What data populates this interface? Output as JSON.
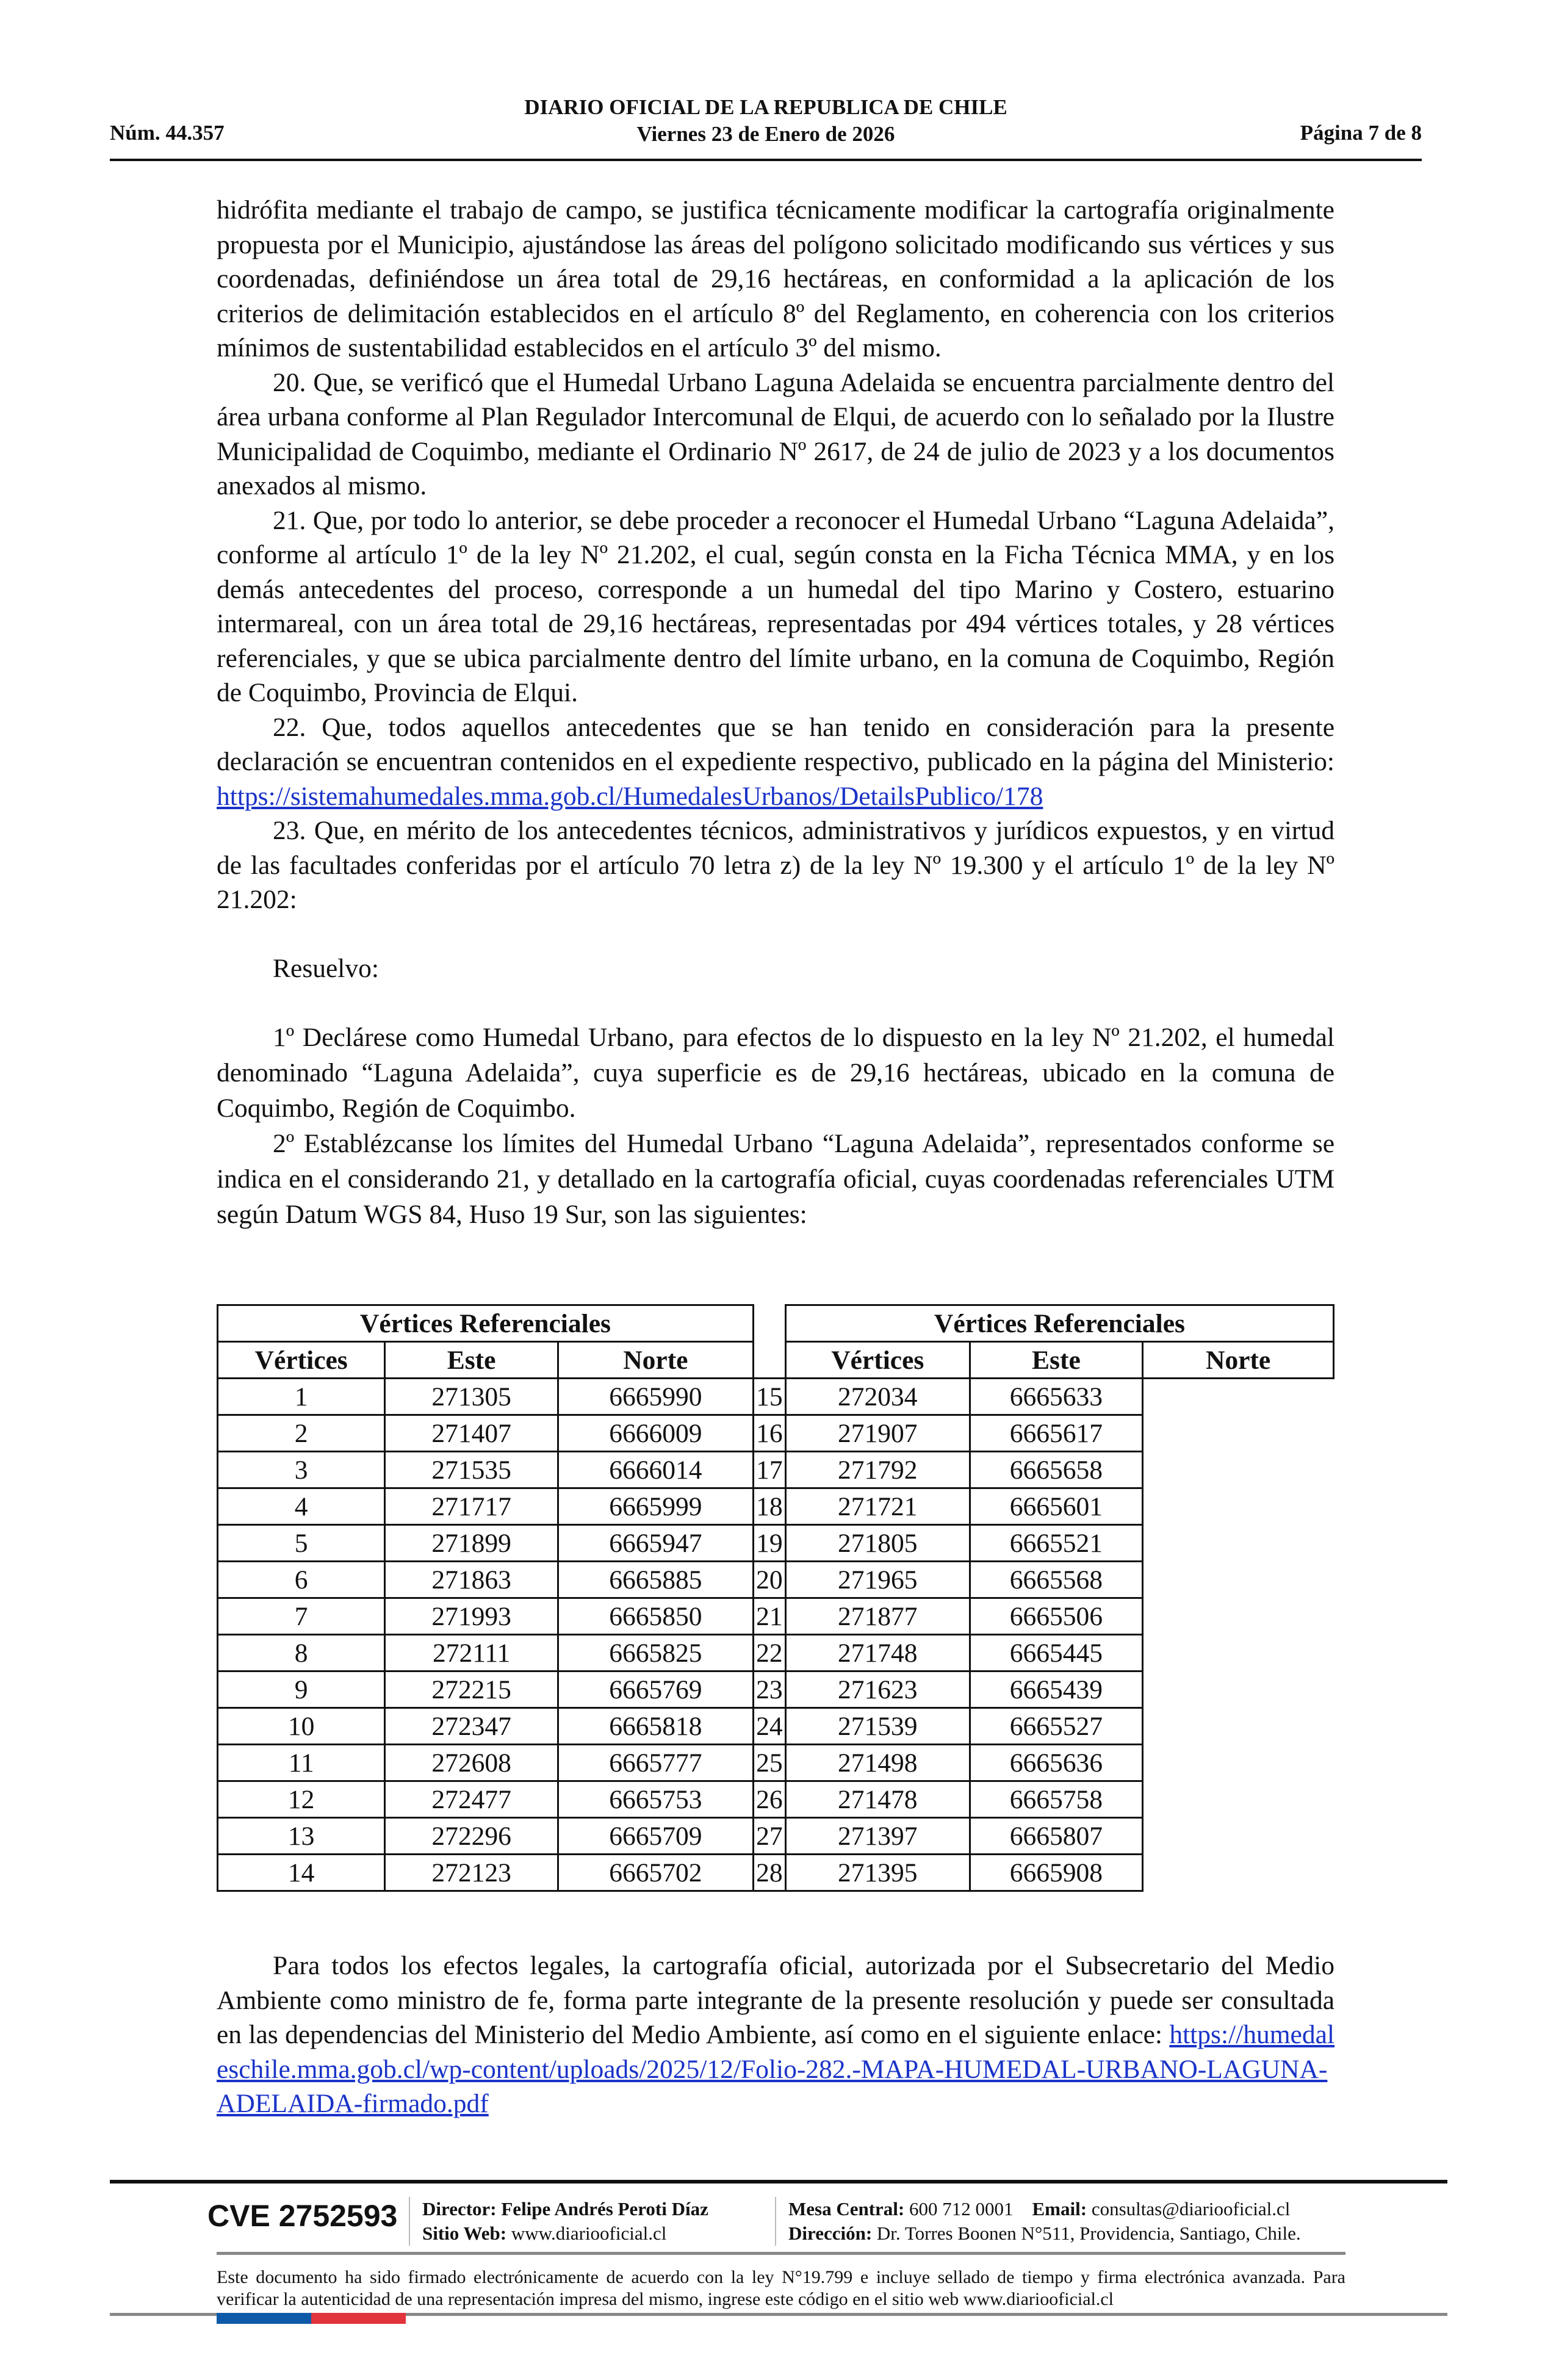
{
  "header": {
    "title": "DIARIO OFICIAL DE LA REPUBLICA DE CHILE",
    "date": "Viernes 23 de Enero de 2026",
    "number": "Núm. 44.357",
    "page": "Página 7 de 8"
  },
  "body": {
    "p1": "hidrófita mediante el trabajo de campo, se justifica técnicamente modificar la cartografía originalmente propuesta por el Municipio, ajustándose las áreas del polígono solicitado modificando sus vértices y sus coordenadas, definiéndose un área total de 29,16 hectáreas, en conformidad a la aplicación de los criterios de delimitación establecidos en el artículo 8º del Reglamento, en coherencia con los criterios mínimos de sustentabilidad establecidos en el artículo 3º del mismo.",
    "p20": "20. Que, se verificó que el Humedal Urbano Laguna Adelaida se encuentra parcialmente dentro del área urbana conforme al Plan Regulador Intercomunal de Elqui, de acuerdo con lo señalado por la Ilustre Municipalidad de Coquimbo, mediante el Ordinario Nº 2617, de 24 de julio de 2023 y a los documentos anexados al mismo.",
    "p21": "21. Que, por todo lo anterior, se debe proceder a reconocer el Humedal Urbano “Laguna Adelaida”, conforme al artículo 1º de la ley Nº 21.202, el cual, según consta en la Ficha Técnica MMA, y en los demás antecedentes del proceso, corresponde a un humedal del tipo Marino y Costero, estuarino intermareal, con un área total de 29,16 hectáreas, representadas por 494 vértices totales, y 28 vértices referenciales, y que se ubica parcialmente dentro del límite urbano, en la comuna de Coquimbo, Región de Coquimbo, Provincia de Elqui.",
    "p22": "22. Que, todos aquellos antecedentes que se han tenido en consideración para la presente declaración se encuentran contenidos en el expediente respectivo, publicado en la página del Ministerio: ",
    "p22_link": "https://sistemahumedales.mma.gob.cl/HumedalesUrbanos/DetailsPublico/178",
    "p23": "23. Que, en mérito de los antecedentes técnicos, administrativos y jurídicos expuestos, y en virtud de las facultades conferidas por el artículo 70 letra z) de la ley Nº 19.300 y el artículo 1º de la ley Nº 21.202:",
    "resuelvo": "Resuelvo:",
    "r1": "1º Declárese como Humedal Urbano, para efectos de lo dispuesto en la ley Nº 21.202, el humedal denominado “Laguna Adelaida”, cuya superficie es de 29,16 hectáreas, ubicado en la comuna de Coquimbo, Región de Coquimbo.",
    "r2": "2º Establézcanse los límites del Humedal Urbano “Laguna Adelaida”, representados conforme se indica en el considerando 21, y detallado en la cartografía oficial, cuyas coordenadas referenciales UTM según Datum WGS 84, Huso 19 Sur, son las siguientes:",
    "final": "Para todos los efectos legales, la cartografía oficial, autorizada por el Subsecretario del Medio Ambiente como ministro de fe, forma parte integrante de la presente resolución y puede ser consultada en las dependencias del Ministerio del Medio Ambiente, así como en el siguiente enlace: ",
    "final_link": "https://humedaleschile.mma.gob.cl/wp-content/uploads/2025/12/Folio-282.-MAPA-HUMEDAL-URBANO-LAGUNA-ADELAIDA-firmado.pdf"
  },
  "table": {
    "group_header": "Vértices Referenciales",
    "columns": [
      "Vértices",
      "Este",
      "Norte"
    ],
    "left": [
      [
        "1",
        "271305",
        "6665990"
      ],
      [
        "2",
        "271407",
        "6666009"
      ],
      [
        "3",
        "271535",
        "6666014"
      ],
      [
        "4",
        "271717",
        "6665999"
      ],
      [
        "5",
        "271899",
        "6665947"
      ],
      [
        "6",
        "271863",
        "6665885"
      ],
      [
        "7",
        "271993",
        "6665850"
      ],
      [
        "8",
        "272111",
        "6665825"
      ],
      [
        "9",
        "272215",
        "6665769"
      ],
      [
        "10",
        "272347",
        "6665818"
      ],
      [
        "11",
        "272608",
        "6665777"
      ],
      [
        "12",
        "272477",
        "6665753"
      ],
      [
        "13",
        "272296",
        "6665709"
      ],
      [
        "14",
        "272123",
        "6665702"
      ]
    ],
    "right": [
      [
        "15",
        "272034",
        "6665633"
      ],
      [
        "16",
        "271907",
        "6665617"
      ],
      [
        "17",
        "271792",
        "6665658"
      ],
      [
        "18",
        "271721",
        "6665601"
      ],
      [
        "19",
        "271805",
        "6665521"
      ],
      [
        "20",
        "271965",
        "6665568"
      ],
      [
        "21",
        "271877",
        "6665506"
      ],
      [
        "22",
        "271748",
        "6665445"
      ],
      [
        "23",
        "271623",
        "6665439"
      ],
      [
        "24",
        "271539",
        "6665527"
      ],
      [
        "25",
        "271498",
        "6665636"
      ],
      [
        "26",
        "271478",
        "6665758"
      ],
      [
        "27",
        "271397",
        "6665807"
      ],
      [
        "28",
        "271395",
        "6665908"
      ]
    ]
  },
  "footer": {
    "cve": "CVE 2752593",
    "director_label": "Director:",
    "director": "Felipe Andrés Peroti Díaz",
    "web_label": "Sitio Web:",
    "web": "www.diariooficial.cl",
    "mesa_label": "Mesa Central:",
    "mesa": "600 712 0001",
    "email_label": "Email:",
    "email": "consultas@diariooficial.cl",
    "dir_label": "Dirección:",
    "direccion": "Dr. Torres Boonen N°511, Providencia, Santiago, Chile.",
    "legal": "Este documento ha sido firmado electrónicamente de acuerdo con la ley N°19.799 e incluye sellado de tiempo y firma electrónica avanzada. Para verificar la autenticidad de una representación impresa del mismo, ingrese este código en el sitio web www.diariooficial.cl",
    "flag_colors": [
      "#0f5aa8",
      "#e2343c"
    ]
  }
}
